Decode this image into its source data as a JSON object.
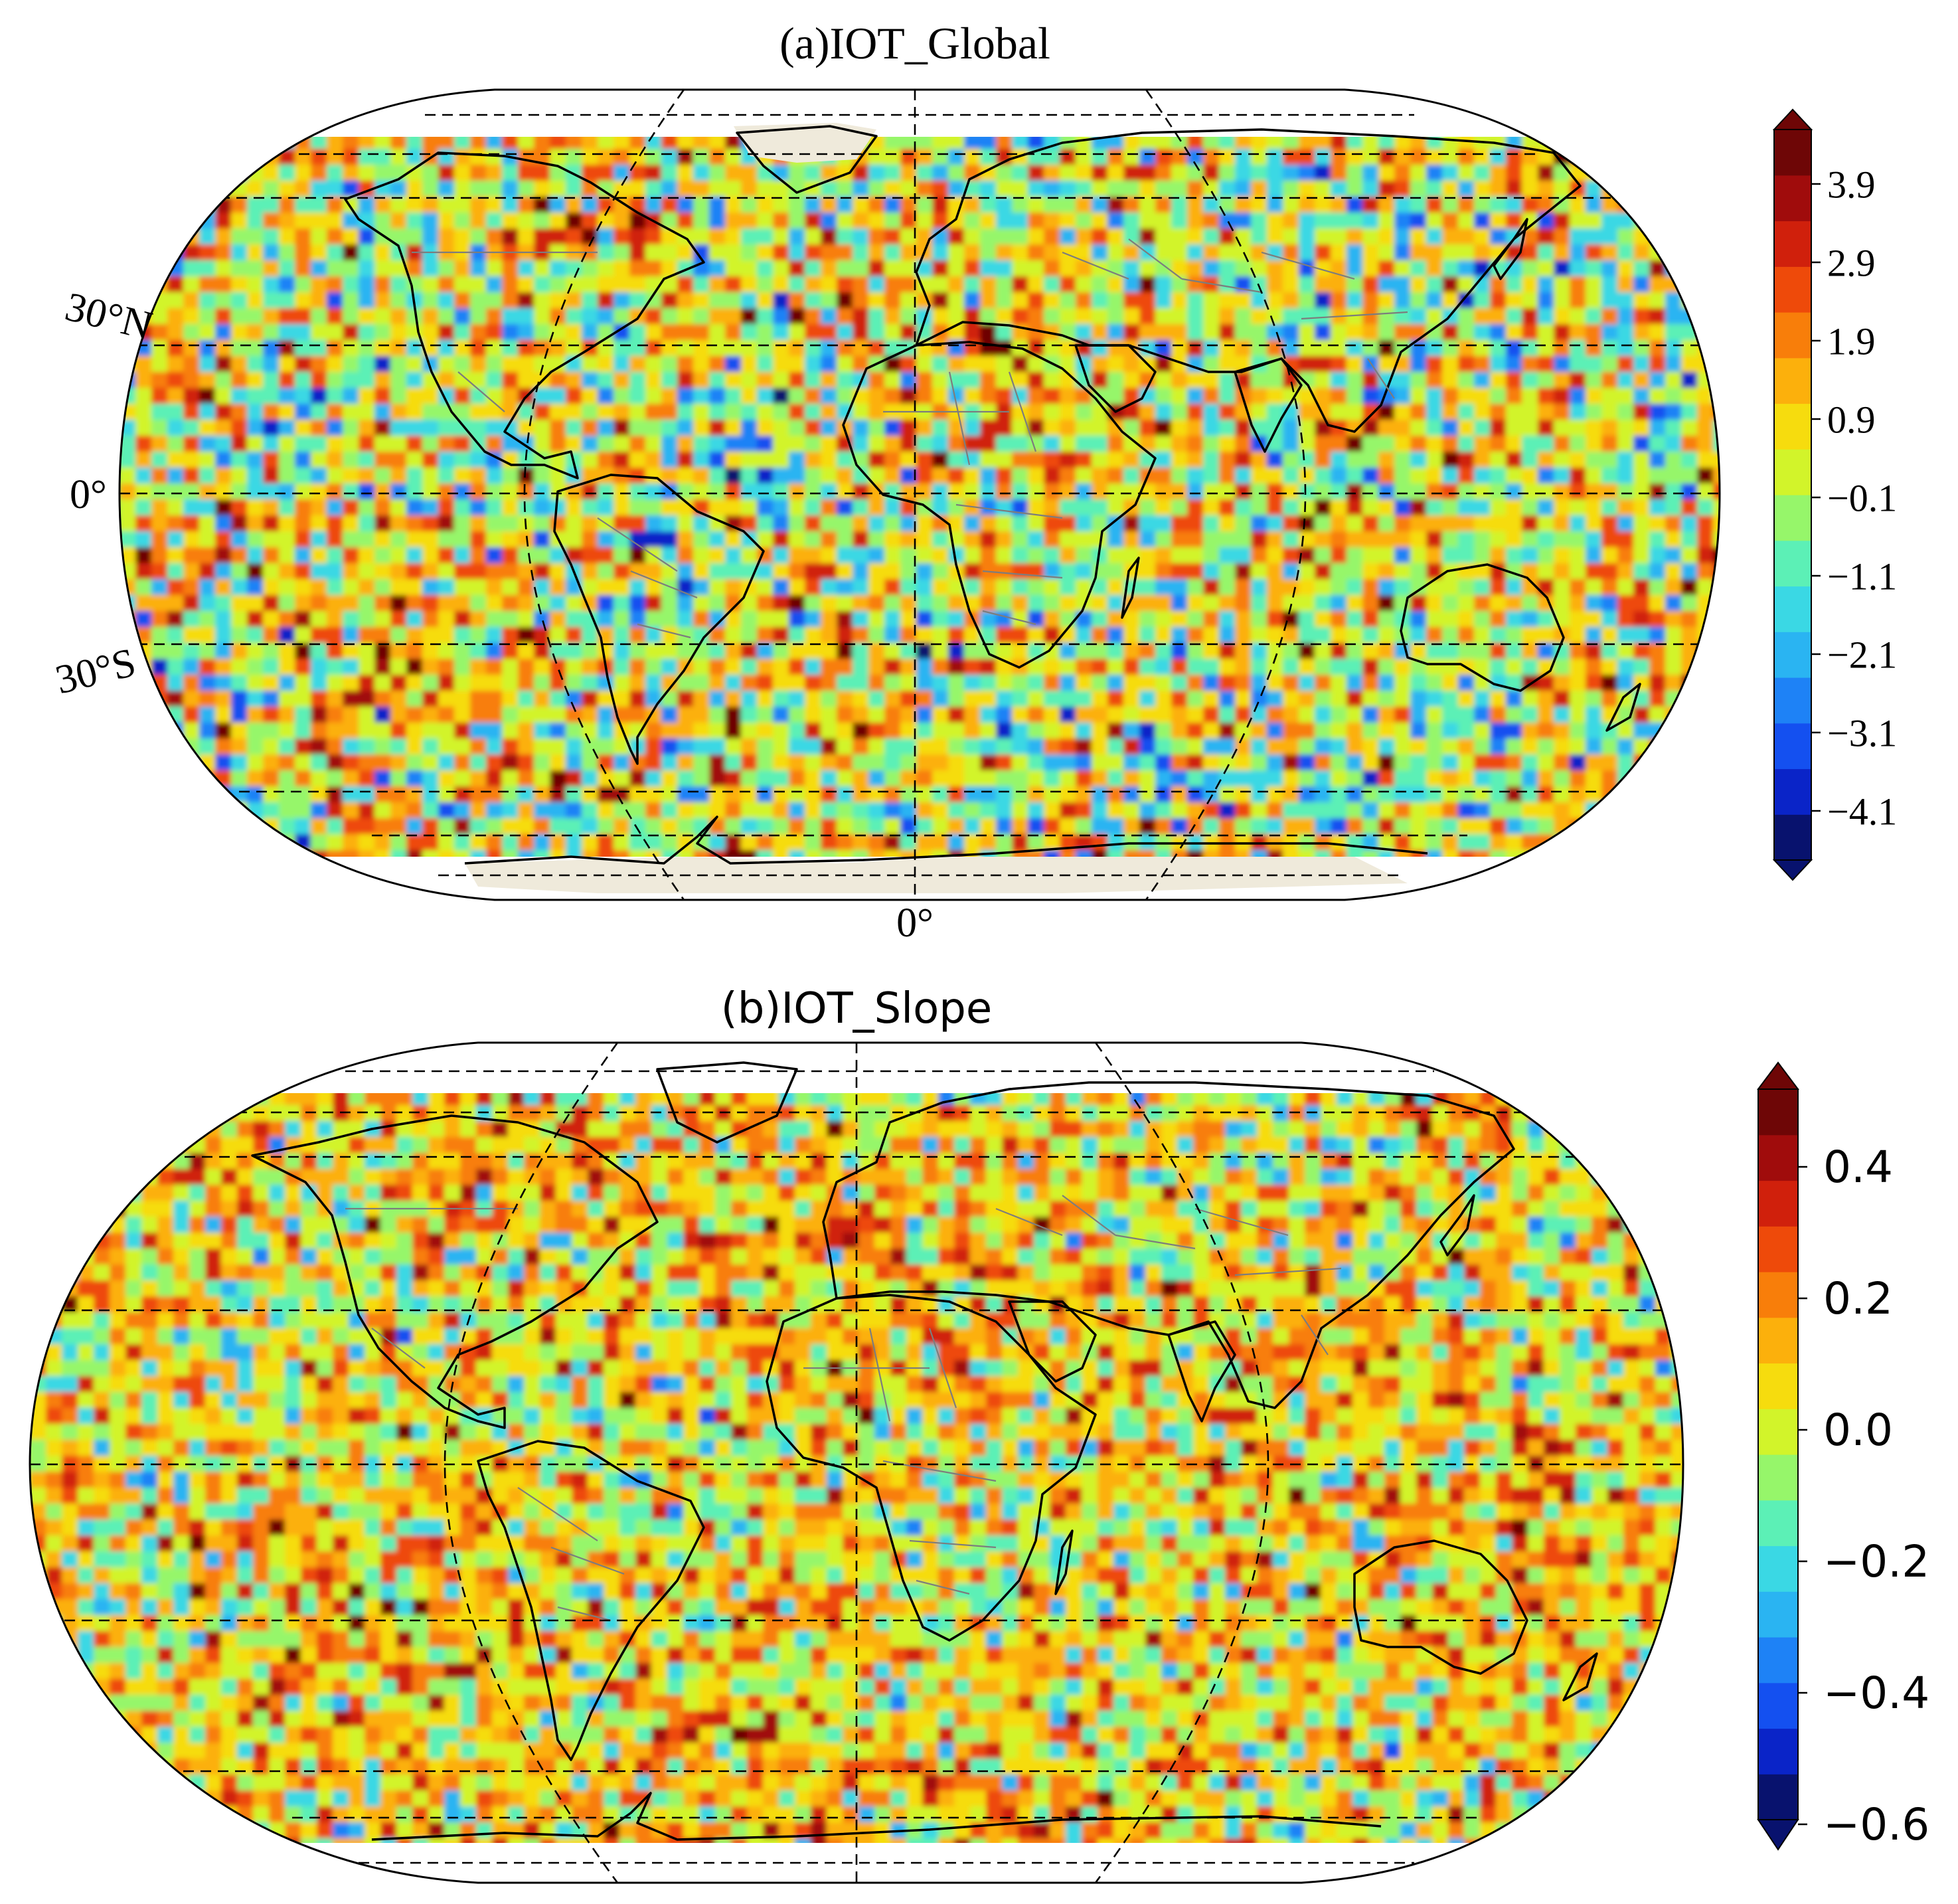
{
  "palette": [
    "#08126e",
    "#0a24c8",
    "#1450f0",
    "#1e82f6",
    "#2ab4f2",
    "#3ad8e4",
    "#5cf0b6",
    "#96f66a",
    "#d2f42a",
    "#f6dc0e",
    "#fcb00c",
    "#f87e0a",
    "#ee4a0a",
    "#d0200c",
    "#a00c0c",
    "#6e0606"
  ],
  "panels": [
    {
      "id": "a",
      "title": "(a)IOT_Global",
      "map_labels": {
        "lat_30n": "30°N",
        "lat_0": "0°",
        "lat_30s": "30°S",
        "lon_0": "0°"
      },
      "colorbar": {
        "ticks": [
          "3.9",
          "2.9",
          "1.9",
          "0.9",
          "−0.1",
          "−1.1",
          "−2.1",
          "−3.1",
          "−4.1"
        ]
      },
      "field": {
        "dominant_range": [
          -1.1,
          1.9
        ],
        "vmin": -4.6,
        "vmax": 4.4,
        "mean": 0.3,
        "noise": 1.6
      }
    },
    {
      "id": "b",
      "title": "(b)IOT_Slope",
      "colorbar": {
        "ticks": [
          "0.4",
          "0.2",
          "0.0",
          "−0.2",
          "−0.4",
          "−0.6"
        ]
      },
      "field": {
        "dominant_range": [
          -0.2,
          0.2
        ],
        "vmin": -0.6,
        "vmax": 0.5,
        "mean": 0.05,
        "noise": 0.16
      }
    }
  ]
}
